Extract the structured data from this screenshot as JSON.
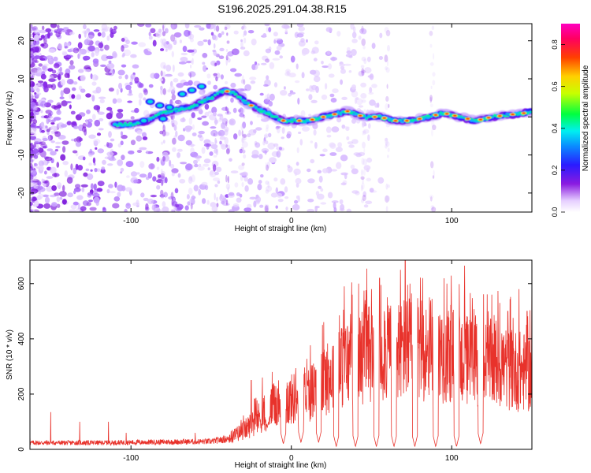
{
  "title": "S196.2025.291.04.38.R15",
  "colors": {
    "snr_line": "#e8322b",
    "spectrogram_background": "#ffffff",
    "axis": "#000000"
  },
  "chart_data": [
    {
      "type": "heatmap",
      "name": "spectrogram",
      "xlabel": "Height of straight line (km)",
      "ylabel": "Frequency (Hz)",
      "xlim": [
        -163,
        150
      ],
      "ylim": [
        -25,
        24.5
      ],
      "x_ticks": [
        -100,
        0,
        100
      ],
      "y_ticks": [
        -20,
        -10,
        0,
        10,
        20
      ],
      "colormap": "rainbow (white-violet-blue-cyan-green-yellow-red-magenta)",
      "colorbar": {
        "label": "Normalized spectral amplitude",
        "range": [
          0,
          0.9
        ],
        "ticks": [
          0.0,
          0.2,
          0.4,
          0.6,
          0.8
        ]
      },
      "ridge": {
        "description": "dominant frequency track",
        "x": [
          -110,
          -100,
          -90,
          -80,
          -70,
          -60,
          -50,
          -42,
          -35,
          -25,
          -15,
          -5,
          0,
          10,
          20,
          30,
          35,
          45,
          55,
          65,
          75,
          85,
          95,
          105,
          115,
          125,
          135,
          145,
          150
        ],
        "y": [
          -2,
          -2,
          -1,
          1,
          2,
          3,
          5,
          7,
          6,
          3,
          1,
          -1,
          -1,
          -1,
          0,
          1,
          1.5,
          0,
          0,
          -1,
          -1,
          0,
          1,
          0,
          -1,
          0,
          0.5,
          1,
          1.5
        ]
      }
    },
    {
      "type": "line",
      "name": "snr",
      "xlabel": "Height of straight line (km)",
      "ylabel": "SNR (10 * v/v)",
      "xlim": [
        -163,
        150
      ],
      "ylim": [
        0,
        685
      ],
      "x_ticks": [
        -100,
        0,
        100
      ],
      "y_ticks": [
        0,
        200,
        400,
        600
      ],
      "envelope": {
        "description": "approximate mean signal level",
        "x": [
          -163,
          -120,
          -80,
          -50,
          -40,
          -30,
          -20,
          -10,
          0,
          10,
          20,
          30,
          40,
          50,
          60,
          70,
          80,
          90,
          100,
          110,
          120,
          130,
          140,
          150
        ],
        "y": [
          25,
          25,
          28,
          30,
          40,
          70,
          120,
          170,
          190,
          210,
          260,
          310,
          350,
          370,
          380,
          385,
          380,
          370,
          360,
          340,
          330,
          320,
          300,
          290
        ]
      },
      "peaks": {
        "x": [
          -163,
          -150,
          -132,
          -114,
          -103,
          -60,
          -25,
          -18,
          -12,
          -8,
          10,
          18,
          27,
          33,
          38,
          42,
          46,
          50,
          55,
          58,
          62,
          68,
          71,
          74,
          78,
          82,
          88,
          91,
          97,
          102,
          108,
          113,
          118,
          125,
          130,
          135,
          142,
          147,
          150
        ],
        "y": [
          55,
          135,
          100,
          100,
          60,
          60,
          250,
          260,
          280,
          250,
          240,
          310,
          490,
          590,
          560,
          600,
          540,
          580,
          620,
          500,
          520,
          650,
          685,
          600,
          540,
          620,
          480,
          530,
          600,
          460,
          665,
          480,
          480,
          560,
          530,
          500,
          580,
          500,
          580
        ]
      },
      "dips": {
        "description": "narrow drop-outs",
        "x": [
          -15,
          -5,
          6,
          17,
          28,
          40,
          53,
          64,
          77,
          90,
          103,
          118
        ],
        "y": [
          80,
          20,
          25,
          25,
          10,
          10,
          10,
          10,
          10,
          10,
          10,
          20
        ]
      }
    }
  ]
}
